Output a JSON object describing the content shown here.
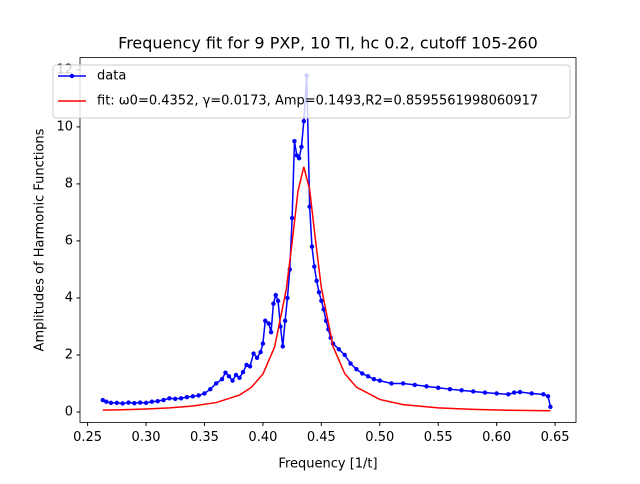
{
  "chart_data": {
    "type": "line",
    "title": "Frequency fit for 9 PXP, 10 TI, hc 0.2, cutoff 105-260",
    "x_label": "Frequency [1/t]",
    "y_label": "Amplitudes of Harmonic Functions",
    "xlim": [
      0.2435,
      0.6679
    ],
    "ylim": [
      -0.365,
      12.43
    ],
    "xticks": [
      0.25,
      {
        "value": 0.3,
        "label": "0.30"
      },
      0.35,
      {
        "value": 0.4,
        "label": "0.40"
      },
      0.45,
      {
        "value": 0.5,
        "label": "0.50"
      },
      0.55,
      {
        "value": 0.6,
        "label": "0.60"
      },
      0.65
    ],
    "yticks": [
      0,
      2,
      4,
      6,
      8,
      10,
      12
    ],
    "legend": "upper left",
    "series": [
      {
        "name": "data",
        "color": "#0000ff",
        "marker": true,
        "x": [
          0.263,
          0.266,
          0.27,
          0.275,
          0.28,
          0.285,
          0.29,
          0.295,
          0.3,
          0.305,
          0.31,
          0.315,
          0.32,
          0.325,
          0.33,
          0.335,
          0.34,
          0.345,
          0.35,
          0.355,
          0.36,
          0.365,
          0.368,
          0.371,
          0.374,
          0.377,
          0.38,
          0.383,
          0.386,
          0.389,
          0.392,
          0.395,
          0.398,
          0.4,
          0.402,
          0.405,
          0.407,
          0.409,
          0.411,
          0.413,
          0.415,
          0.417,
          0.419,
          0.421,
          0.423,
          0.425,
          0.427,
          0.429,
          0.431,
          0.433,
          0.435,
          0.4375,
          0.44,
          0.442,
          0.444,
          0.446,
          0.448,
          0.45,
          0.452,
          0.454,
          0.456,
          0.458,
          0.46,
          0.465,
          0.47,
          0.475,
          0.48,
          0.485,
          0.49,
          0.495,
          0.5,
          0.51,
          0.52,
          0.53,
          0.54,
          0.55,
          0.56,
          0.57,
          0.58,
          0.59,
          0.6,
          0.61,
          0.615,
          0.62,
          0.63,
          0.64,
          0.644,
          0.646
        ],
        "values": [
          0.42,
          0.36,
          0.32,
          0.32,
          0.3,
          0.33,
          0.31,
          0.33,
          0.32,
          0.36,
          0.38,
          0.42,
          0.48,
          0.46,
          0.48,
          0.52,
          0.55,
          0.58,
          0.65,
          0.8,
          1.0,
          1.15,
          1.38,
          1.25,
          1.1,
          1.3,
          1.2,
          1.4,
          1.65,
          1.6,
          2.05,
          1.9,
          2.1,
          2.4,
          3.2,
          3.1,
          2.8,
          3.8,
          4.1,
          3.9,
          3.0,
          2.3,
          3.2,
          4.0,
          5.0,
          6.8,
          9.5,
          9.0,
          8.9,
          9.3,
          10.2,
          11.8,
          7.2,
          5.8,
          5.1,
          4.6,
          4.2,
          3.9,
          3.6,
          3.2,
          2.9,
          2.6,
          2.4,
          2.2,
          2.0,
          1.7,
          1.5,
          1.35,
          1.25,
          1.15,
          1.1,
          1.0,
          1.0,
          0.95,
          0.9,
          0.85,
          0.8,
          0.76,
          0.72,
          0.68,
          0.65,
          0.62,
          0.68,
          0.7,
          0.65,
          0.62,
          0.55,
          0.18
        ]
      },
      {
        "name": "fit: ω0=0.4352, γ=0.0173, Amp=0.1493,R2=0.8595561998060917",
        "color": "#ff0000",
        "marker": false,
        "x": [
          0.263,
          0.28,
          0.3,
          0.32,
          0.34,
          0.36,
          0.38,
          0.39,
          0.4,
          0.41,
          0.42,
          0.425,
          0.43,
          0.435,
          0.44,
          0.445,
          0.45,
          0.46,
          0.47,
          0.48,
          0.5,
          0.52,
          0.55,
          0.58,
          0.61,
          0.646
        ],
        "values": [
          0.065,
          0.08,
          0.105,
          0.144,
          0.209,
          0.331,
          0.595,
          0.86,
          1.33,
          2.28,
          4.3,
          5.95,
          7.74,
          8.6,
          7.8,
          6.03,
          4.36,
          2.3,
          1.35,
          0.87,
          0.44,
          0.26,
          0.144,
          0.091,
          0.063,
          0.043
        ]
      }
    ]
  }
}
